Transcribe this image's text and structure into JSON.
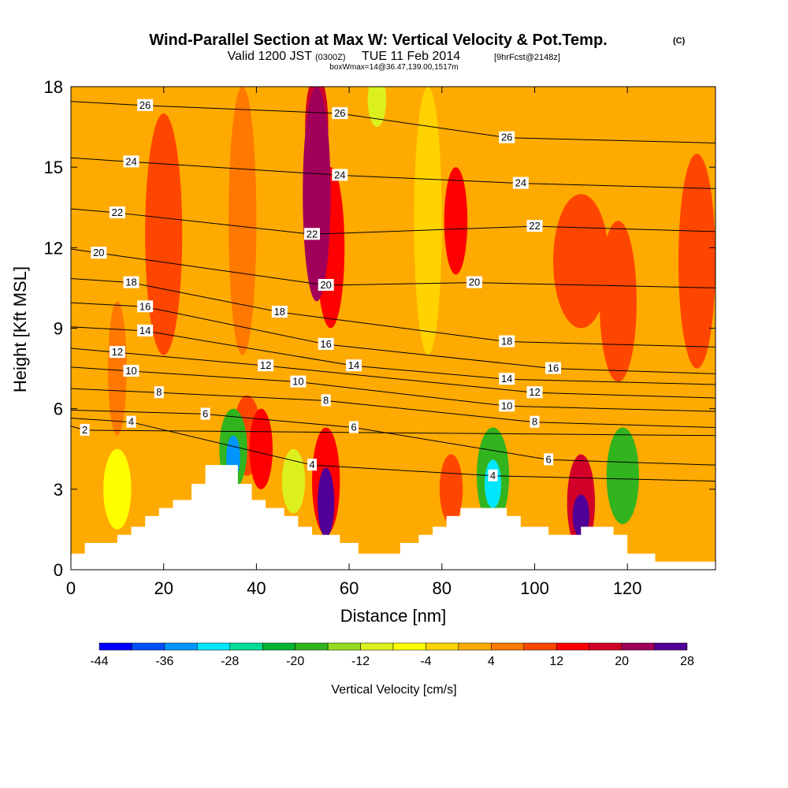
{
  "figure": {
    "title": "Wind-Parallel Section at Max W: Vertical Velocity & Pot.Temp.",
    "title_mark": "(C)",
    "valid_main": "Valid 1200 JST",
    "valid_zone": "(0300Z)",
    "valid_date": "TUE 11 Feb 2014",
    "valid_fcst": "[9hrFcst@2148z]",
    "box_info": "boxWmax=14@36.47,139.00,1517m"
  },
  "colors": {
    "scale": [
      "#0000ff",
      "#0050ff",
      "#0096ff",
      "#00e6ff",
      "#00dc96",
      "#00b432",
      "#32b41e",
      "#96dc1e",
      "#dcf01e",
      "#ffff00",
      "#ffd200",
      "#ffaa00",
      "#ff7800",
      "#ff4600",
      "#ff0000",
      "#d20028",
      "#a0005a",
      "#500096"
    ]
  },
  "chart_data": {
    "type": "heatmap",
    "xlabel": "Distance [nm]",
    "ylabel": "Height [Kft MSL]",
    "xlim": [
      0,
      139
    ],
    "ylim": [
      0,
      18
    ],
    "xticks": [
      "0",
      "20",
      "40",
      "60",
      "80",
      "100",
      "120"
    ],
    "yticks": [
      "0",
      "3",
      "6",
      "9",
      "12",
      "15",
      "18"
    ],
    "colorbar": {
      "label": "Vertical Velocity [cm/s]",
      "tick_labels": [
        "-44",
        "-36",
        "-28",
        "-20",
        "-12",
        "-4",
        "4",
        "12",
        "20",
        "28"
      ],
      "bounds": [
        -44,
        28
      ],
      "step": 4
    },
    "contour_field": "Potential Temperature",
    "contour_levels": [
      2,
      4,
      6,
      8,
      10,
      12,
      14,
      16,
      18,
      20,
      22,
      24,
      26
    ],
    "contour_labels": [
      {
        "text": "26",
        "x": 16,
        "y": 17.3
      },
      {
        "text": "26",
        "x": 58,
        "y": 17.0
      },
      {
        "text": "26",
        "x": 94,
        "y": 16.1
      },
      {
        "text": "24",
        "x": 13,
        "y": 15.2
      },
      {
        "text": "24",
        "x": 58,
        "y": 14.7
      },
      {
        "text": "24",
        "x": 97,
        "y": 14.4
      },
      {
        "text": "22",
        "x": 10,
        "y": 13.3
      },
      {
        "text": "22",
        "x": 52,
        "y": 12.5
      },
      {
        "text": "22",
        "x": 100,
        "y": 12.8
      },
      {
        "text": "20",
        "x": 6,
        "y": 11.8
      },
      {
        "text": "20",
        "x": 55,
        "y": 10.6
      },
      {
        "text": "20",
        "x": 87,
        "y": 10.7
      },
      {
        "text": "18",
        "x": 13,
        "y": 10.7
      },
      {
        "text": "18",
        "x": 45,
        "y": 9.6
      },
      {
        "text": "18",
        "x": 94,
        "y": 8.5
      },
      {
        "text": "16",
        "x": 16,
        "y": 9.8
      },
      {
        "text": "16",
        "x": 55,
        "y": 8.4
      },
      {
        "text": "16",
        "x": 104,
        "y": 7.5
      },
      {
        "text": "14",
        "x": 16,
        "y": 8.9
      },
      {
        "text": "14",
        "x": 61,
        "y": 7.6
      },
      {
        "text": "14",
        "x": 94,
        "y": 7.1
      },
      {
        "text": "12",
        "x": 10,
        "y": 8.1
      },
      {
        "text": "12",
        "x": 42,
        "y": 7.6
      },
      {
        "text": "12",
        "x": 100,
        "y": 6.6
      },
      {
        "text": "10",
        "x": 13,
        "y": 7.4
      },
      {
        "text": "10",
        "x": 49,
        "y": 7.0
      },
      {
        "text": "10",
        "x": 94,
        "y": 6.1
      },
      {
        "text": "8",
        "x": 19,
        "y": 6.6
      },
      {
        "text": "8",
        "x": 55,
        "y": 6.3
      },
      {
        "text": "8",
        "x": 100,
        "y": 5.5
      },
      {
        "text": "6",
        "x": 29,
        "y": 5.8
      },
      {
        "text": "6",
        "x": 61,
        "y": 5.3
      },
      {
        "text": "6",
        "x": 103,
        "y": 4.1
      },
      {
        "text": "4",
        "x": 13,
        "y": 5.5
      },
      {
        "text": "4",
        "x": 52,
        "y": 3.9
      },
      {
        "text": "4",
        "x": 91,
        "y": 3.5
      },
      {
        "text": "2",
        "x": 3,
        "y": 5.2
      }
    ],
    "terrain": [
      [
        0,
        0.6
      ],
      [
        3,
        0.6
      ],
      [
        3,
        1.0
      ],
      [
        10,
        1.0
      ],
      [
        10,
        1.3
      ],
      [
        13,
        1.3
      ],
      [
        13,
        1.6
      ],
      [
        16,
        1.6
      ],
      [
        16,
        2.0
      ],
      [
        19,
        2.0
      ],
      [
        19,
        2.3
      ],
      [
        22,
        2.3
      ],
      [
        22,
        2.6
      ],
      [
        26,
        2.6
      ],
      [
        26,
        3.2
      ],
      [
        29,
        3.2
      ],
      [
        29,
        3.9
      ],
      [
        36,
        3.9
      ],
      [
        36,
        3.2
      ],
      [
        39,
        3.2
      ],
      [
        39,
        2.6
      ],
      [
        42,
        2.6
      ],
      [
        42,
        2.3
      ],
      [
        46,
        2.3
      ],
      [
        46,
        2.0
      ],
      [
        49,
        2.0
      ],
      [
        49,
        1.6
      ],
      [
        52,
        1.6
      ],
      [
        52,
        1.3
      ],
      [
        58,
        1.3
      ],
      [
        58,
        1.0
      ],
      [
        62,
        1.0
      ],
      [
        62,
        0.6
      ],
      [
        71,
        0.6
      ],
      [
        71,
        1.0
      ],
      [
        75,
        1.0
      ],
      [
        75,
        1.3
      ],
      [
        78,
        1.3
      ],
      [
        78,
        1.6
      ],
      [
        81,
        1.6
      ],
      [
        81,
        2.0
      ],
      [
        84,
        2.0
      ],
      [
        84,
        2.3
      ],
      [
        94,
        2.3
      ],
      [
        94,
        2.0
      ],
      [
        97,
        2.0
      ],
      [
        97,
        1.6
      ],
      [
        103,
        1.6
      ],
      [
        103,
        1.3
      ],
      [
        110,
        1.3
      ],
      [
        110,
        1.6
      ],
      [
        117,
        1.6
      ],
      [
        117,
        1.3
      ],
      [
        120,
        1.3
      ],
      [
        120,
        0.6
      ],
      [
        126,
        0.6
      ],
      [
        126,
        0.3
      ],
      [
        139,
        0.3
      ]
    ],
    "regions": [
      {
        "cx": 20,
        "cy": 12.5,
        "rx": 4,
        "ry": 4.5,
        "w": 8
      },
      {
        "cx": 37,
        "cy": 13,
        "rx": 3,
        "ry": 5,
        "w": 6
      },
      {
        "cx": 53,
        "cy": 14,
        "rx": 3,
        "ry": 4,
        "w": 20
      },
      {
        "cx": 53,
        "cy": 16.5,
        "rx": 2.5,
        "ry": 2,
        "w": 16
      },
      {
        "cx": 56,
        "cy": 12,
        "rx": 3,
        "ry": 3,
        "w": 12
      },
      {
        "cx": 66,
        "cy": 17.5,
        "rx": 2,
        "ry": 1,
        "w": -12
      },
      {
        "cx": 77,
        "cy": 13,
        "rx": 3,
        "ry": 5,
        "w": -4
      },
      {
        "cx": 83,
        "cy": 13,
        "rx": 2.5,
        "ry": 2,
        "w": 12
      },
      {
        "cx": 110,
        "cy": 11.5,
        "rx": 6,
        "ry": 2.5,
        "w": 8
      },
      {
        "cx": 118,
        "cy": 10,
        "rx": 4,
        "ry": 3,
        "w": 8
      },
      {
        "cx": 135,
        "cy": 11.5,
        "rx": 4,
        "ry": 4,
        "w": 8
      },
      {
        "cx": 10,
        "cy": 7.5,
        "rx": 2,
        "ry": 2.5,
        "w": 6
      },
      {
        "cx": 38,
        "cy": 5,
        "rx": 3,
        "ry": 1.5,
        "w": 8
      },
      {
        "cx": 35,
        "cy": 4.5,
        "rx": 3,
        "ry": 1.5,
        "w": -20
      },
      {
        "cx": 35,
        "cy": 4.2,
        "rx": 1.5,
        "ry": 0.8,
        "w": -36
      },
      {
        "cx": 41,
        "cy": 4.5,
        "rx": 2.5,
        "ry": 1.5,
        "w": 14
      },
      {
        "cx": 48,
        "cy": 3.3,
        "rx": 2.5,
        "ry": 1.2,
        "w": -10
      },
      {
        "cx": 55,
        "cy": 3.3,
        "rx": 3,
        "ry": 2,
        "w": 14
      },
      {
        "cx": 55,
        "cy": 2.5,
        "rx": 1.8,
        "ry": 1.3,
        "w": 26
      },
      {
        "cx": 82,
        "cy": 3.0,
        "rx": 2.5,
        "ry": 1.3,
        "w": 10
      },
      {
        "cx": 91,
        "cy": 3.5,
        "rx": 3.5,
        "ry": 1.8,
        "w": -20
      },
      {
        "cx": 91,
        "cy": 3.2,
        "rx": 1.8,
        "ry": 0.9,
        "w": -32
      },
      {
        "cx": 110,
        "cy": 2.5,
        "rx": 3,
        "ry": 1.8,
        "w": 18
      },
      {
        "cx": 110,
        "cy": 2.0,
        "rx": 1.8,
        "ry": 0.8,
        "w": 28
      },
      {
        "cx": 119,
        "cy": 3.5,
        "rx": 3.5,
        "ry": 1.8,
        "w": -20
      },
      {
        "cx": 10,
        "cy": 3.0,
        "rx": 3,
        "ry": 1.5,
        "w": -6
      }
    ]
  }
}
